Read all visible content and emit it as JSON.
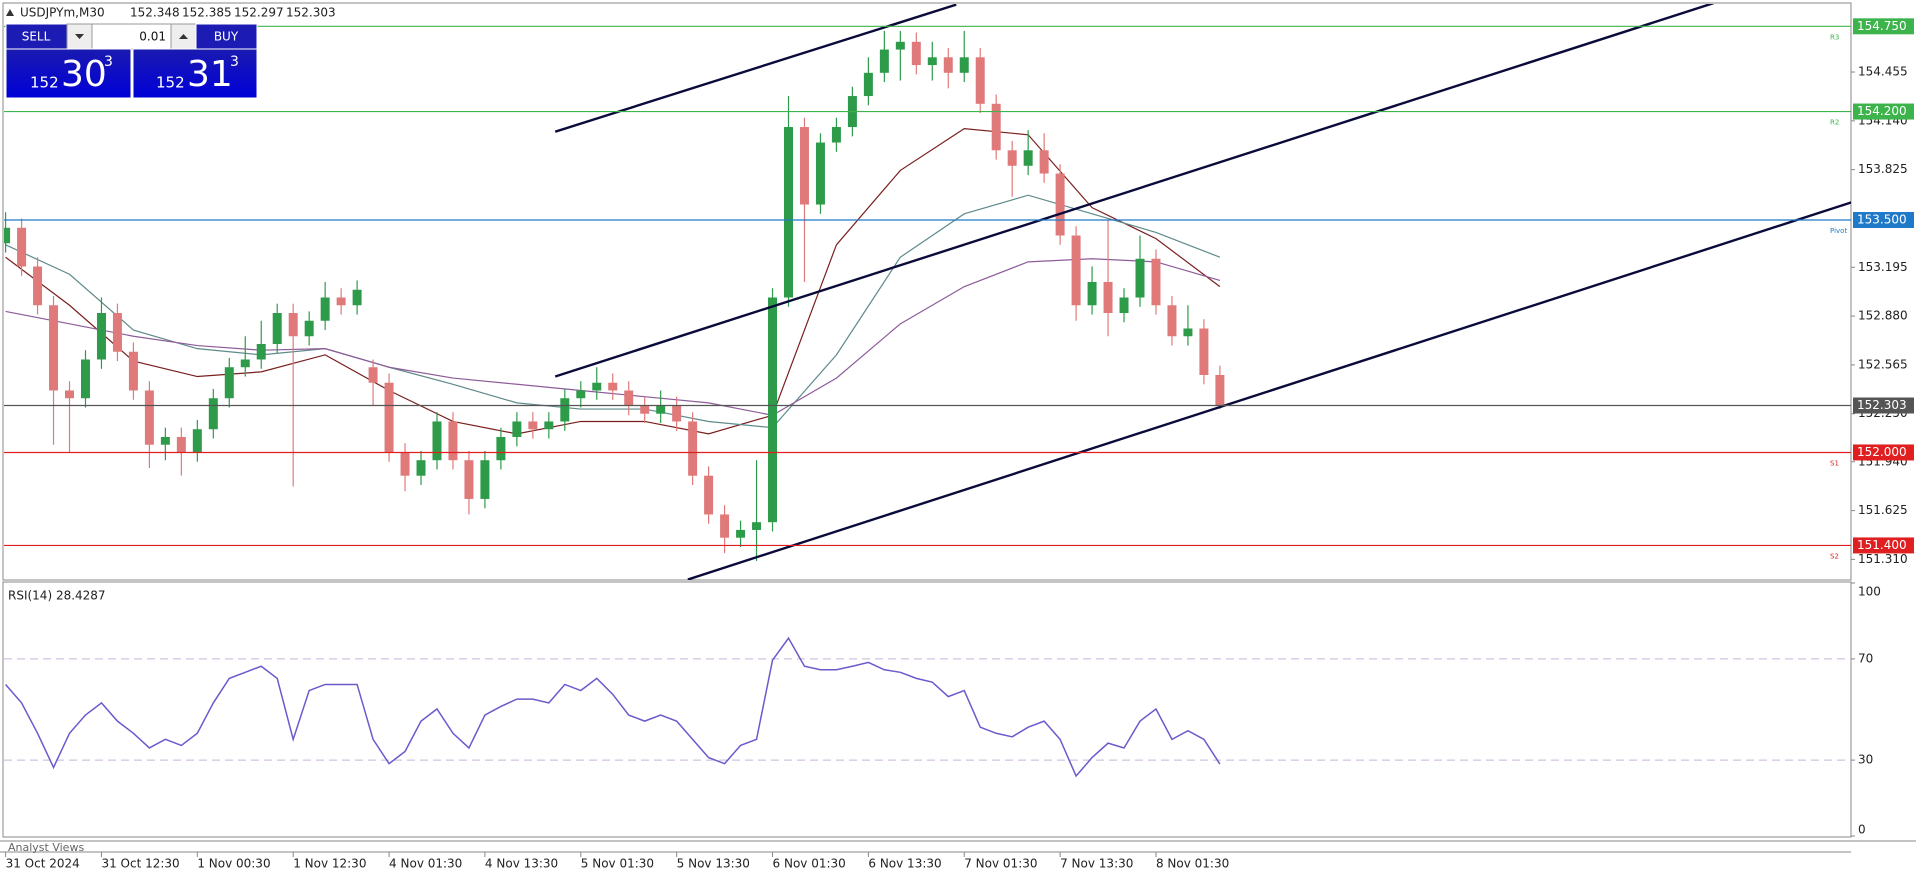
{
  "header": {
    "symbol": "USDJPYm,M30",
    "ohlc": [
      152.348,
      152.385,
      152.297,
      152.303
    ]
  },
  "trade_panel": {
    "sell_label": "SELL",
    "buy_label": "BUY",
    "lot": "0.01",
    "sell_price": {
      "big": "152",
      "mid": "30",
      "sup": "3"
    },
    "buy_price": {
      "big": "152",
      "mid": "31",
      "sup": "3"
    }
  },
  "footer": {
    "panel_label": "Analyst Views"
  },
  "chart_data": [
    {
      "type": "candlestick",
      "xlim": [
        -0.1,
        115.5
      ],
      "ylim": [
        151.177,
        154.894
      ],
      "xticks": [
        {
          "value": 0,
          "label": "31 Oct 2024"
        },
        {
          "value": 6,
          "label": "31 Oct 12:30"
        },
        {
          "value": 12,
          "label": "1 Nov 00:30"
        },
        {
          "value": 18,
          "label": "1 Nov 12:30"
        },
        {
          "value": 24,
          "label": "4 Nov 01:30"
        },
        {
          "value": 30,
          "label": "4 Nov 13:30"
        },
        {
          "value": 36,
          "label": "5 Nov 01:30"
        },
        {
          "value": 42,
          "label": "5 Nov 13:30"
        },
        {
          "value": 48,
          "label": "6 Nov 01:30"
        },
        {
          "value": 54,
          "label": "6 Nov 13:30"
        },
        {
          "value": 60,
          "label": "7 Nov 01:30"
        },
        {
          "value": 66,
          "label": "7 Nov 13:30"
        },
        {
          "value": 72,
          "label": "8 Nov 01:30"
        }
      ],
      "yticks": [
        154.455,
        {
          "value": 154.14,
          "label": "154.140"
        },
        153.825,
        153.195,
        {
          "value": 152.88,
          "label": "152.880"
        },
        152.565,
        {
          "value": 152.25,
          "label": "152.250"
        },
        {
          "value": 151.94,
          "label": "151.940"
        },
        151.625,
        {
          "value": 151.31,
          "label": "151.310"
        }
      ],
      "up_color": "#2e9b4a",
      "down_color": "#e07a7a",
      "open": [
        153.35,
        153.45,
        153.2,
        152.95,
        152.4,
        152.35,
        152.6,
        152.9,
        152.65,
        152.4,
        152.05,
        152.1,
        152.0,
        152.15,
        152.35,
        152.55,
        152.6,
        152.7,
        152.9,
        152.75,
        152.85,
        153.0,
        152.95,
        152.55,
        152.45,
        152.0,
        151.85,
        151.95,
        152.2,
        151.95,
        151.7,
        151.95,
        152.1,
        152.2,
        152.15,
        152.2,
        152.35,
        152.4,
        152.45,
        152.4,
        152.3,
        152.25,
        152.3,
        152.2,
        151.85,
        151.6,
        151.45,
        151.5,
        151.55,
        153.0,
        154.1,
        153.6,
        154.0,
        154.1,
        154.3,
        154.45,
        154.6,
        154.65,
        154.5,
        154.55,
        154.45,
        154.55,
        154.25,
        153.95,
        153.85,
        153.95,
        153.8,
        153.4,
        152.95,
        153.1,
        152.9,
        153.0,
        153.25,
        152.95,
        152.75,
        152.8,
        152.5
      ],
      "high": [
        153.55,
        153.51,
        153.26,
        153.01,
        152.46,
        152.66,
        153.0,
        152.96,
        152.71,
        152.46,
        152.16,
        152.16,
        152.21,
        152.41,
        152.61,
        152.75,
        152.85,
        152.96,
        152.96,
        152.91,
        153.1,
        153.06,
        153.11,
        152.6,
        152.51,
        152.06,
        152.01,
        152.26,
        152.26,
        152.01,
        152.01,
        152.16,
        152.26,
        152.26,
        152.26,
        152.41,
        152.46,
        152.55,
        152.51,
        152.46,
        152.36,
        152.4,
        152.36,
        152.26,
        151.91,
        151.66,
        151.56,
        151.95,
        153.06,
        154.3,
        154.16,
        154.06,
        154.16,
        154.36,
        154.55,
        154.72,
        154.72,
        154.71,
        154.65,
        154.61,
        154.72,
        154.61,
        154.31,
        154.01,
        154.08,
        154.06,
        153.86,
        153.46,
        153.2,
        153.5,
        153.06,
        153.4,
        153.31,
        153.01,
        152.95,
        152.86,
        152.56
      ],
      "low": [
        153.29,
        153.14,
        152.89,
        152.05,
        152.0,
        152.29,
        152.54,
        152.59,
        152.34,
        151.9,
        151.95,
        151.85,
        151.94,
        152.09,
        152.29,
        152.49,
        152.54,
        152.64,
        151.78,
        152.69,
        152.79,
        152.89,
        152.89,
        152.3,
        151.94,
        151.75,
        151.79,
        151.89,
        151.89,
        151.6,
        151.64,
        151.89,
        152.04,
        152.09,
        152.09,
        152.14,
        152.29,
        152.34,
        152.34,
        152.24,
        152.19,
        152.19,
        152.14,
        151.79,
        151.54,
        151.35,
        151.39,
        151.3,
        151.49,
        152.94,
        153.1,
        153.54,
        153.94,
        154.04,
        154.24,
        154.39,
        154.4,
        154.44,
        154.4,
        154.35,
        154.39,
        154.19,
        153.89,
        153.65,
        153.79,
        153.74,
        153.34,
        152.85,
        152.89,
        152.75,
        152.84,
        152.94,
        152.89,
        152.69,
        152.69,
        152.44,
        152.28
      ],
      "close": [
        153.45,
        153.2,
        152.95,
        152.4,
        152.35,
        152.6,
        152.9,
        152.65,
        152.4,
        152.05,
        152.1,
        152.0,
        152.15,
        152.35,
        152.55,
        152.6,
        152.7,
        152.9,
        152.75,
        152.85,
        153.0,
        152.95,
        153.05,
        152.45,
        152.0,
        151.85,
        151.95,
        152.2,
        151.95,
        151.7,
        151.95,
        152.1,
        152.2,
        152.15,
        152.2,
        152.35,
        152.4,
        152.45,
        152.4,
        152.3,
        152.25,
        152.3,
        152.2,
        151.85,
        151.6,
        151.45,
        151.5,
        151.55,
        153.0,
        154.1,
        153.6,
        154.0,
        154.1,
        154.3,
        154.45,
        154.6,
        154.65,
        154.5,
        154.55,
        154.45,
        154.55,
        154.25,
        153.95,
        153.85,
        153.95,
        153.8,
        153.4,
        152.95,
        153.1,
        152.9,
        153.0,
        153.25,
        152.95,
        152.75,
        152.8,
        152.5,
        152.303
      ],
      "series": [
        {
          "color": "#7a1f1f",
          "x": [
            0,
            4,
            8,
            12,
            16,
            20,
            24,
            28,
            32,
            36,
            40,
            44,
            48,
            52,
            56,
            60,
            64,
            68,
            72,
            76
          ],
          "values": [
            153.26,
            152.95,
            152.59,
            152.49,
            152.52,
            152.63,
            152.4,
            152.2,
            152.12,
            152.2,
            152.2,
            152.12,
            152.24,
            153.34,
            153.82,
            154.09,
            154.05,
            153.58,
            153.38,
            153.07
          ]
        },
        {
          "color": "#5f8a8b",
          "x": [
            0,
            4,
            8,
            12,
            16,
            20,
            24,
            28,
            32,
            36,
            40,
            44,
            48,
            52,
            56,
            60,
            64,
            68,
            72,
            76
          ],
          "values": [
            153.34,
            153.15,
            152.79,
            152.67,
            152.63,
            152.67,
            152.55,
            152.44,
            152.32,
            152.28,
            152.28,
            152.2,
            152.16,
            152.63,
            153.26,
            153.54,
            153.66,
            153.54,
            153.42,
            153.26
          ]
        },
        {
          "color": "#8e5b9a",
          "x": [
            0,
            4,
            8,
            12,
            16,
            20,
            24,
            28,
            32,
            36,
            40,
            44,
            48,
            52,
            56,
            60,
            64,
            68,
            72,
            76
          ],
          "values": [
            152.91,
            152.83,
            152.75,
            152.69,
            152.66,
            152.67,
            152.55,
            152.48,
            152.44,
            152.4,
            152.36,
            152.32,
            152.24,
            152.48,
            152.83,
            153.07,
            153.23,
            153.25,
            153.23,
            153.11
          ]
        }
      ],
      "trendlines": [
        {
          "color": "#0b0b3b",
          "x": [
            34.4,
            59.5
          ],
          "values": [
            154.07,
            154.89
          ]
        },
        {
          "color": "#0b0b3b",
          "x": [
            34.4,
            106.9
          ],
          "values": [
            152.49,
            154.9
          ]
        },
        {
          "color": "#0b0b3b",
          "x": [
            42.7,
            115.7
          ],
          "values": [
            151.18,
            153.62
          ]
        }
      ],
      "levels": [
        {
          "value": 154.75,
          "label": "154.750",
          "name": "R3",
          "color": "#3cb44b"
        },
        {
          "value": 154.2,
          "label": "154.200",
          "name": "R2",
          "color": "#3cb44b"
        },
        {
          "value": 153.5,
          "label": "153.500",
          "name": "Pivot",
          "color": "#1e7ac8"
        },
        {
          "value": 152.303,
          "color": "#555555"
        },
        {
          "value": 152.0,
          "label": "152.000",
          "name": "S1",
          "color": "#e02020"
        },
        {
          "value": 151.4,
          "label": "151.400",
          "name": "S2",
          "color": "#e02020"
        }
      ]
    },
    {
      "type": "line",
      "title": "RSI(14) 28.4287",
      "color": "#6a5acd",
      "ylim": [
        0,
        100
      ],
      "yticks": [
        0,
        30,
        70,
        100
      ],
      "levels": [
        70,
        30
      ],
      "values": [
        59.9,
        52.6,
        40.6,
        27.1,
        40.6,
        47.8,
        52.6,
        45.4,
        40.6,
        34.8,
        38.2,
        35.8,
        40.6,
        52.6,
        62.3,
        64.7,
        67.1,
        62.3,
        38.2,
        57.5,
        59.9,
        59.9,
        59.9,
        38.2,
        28.6,
        33.4,
        45.4,
        50.2,
        40.6,
        34.8,
        47.8,
        51.2,
        54.1,
        54.1,
        52.6,
        59.9,
        57.5,
        62.3,
        56.0,
        47.8,
        45.4,
        47.8,
        45.4,
        38.2,
        31.0,
        28.6,
        35.8,
        38.2,
        69.5,
        78.2,
        67.1,
        65.7,
        65.7,
        67.1,
        68.6,
        65.7,
        64.7,
        62.3,
        60.8,
        55.1,
        57.5,
        43.0,
        40.6,
        39.2,
        43.0,
        45.4,
        38.2,
        23.7,
        31.0,
        36.7,
        34.8,
        45.4,
        50.2,
        38.2,
        41.6,
        38.2,
        28.4287
      ]
    }
  ]
}
